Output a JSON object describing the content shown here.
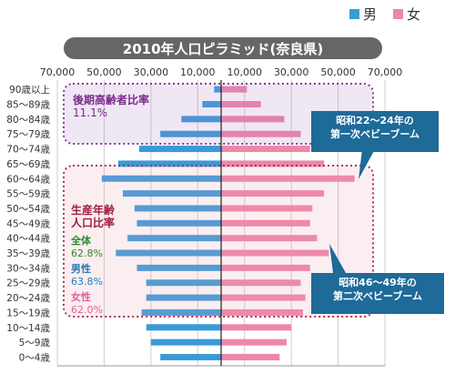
{
  "legend": {
    "male": {
      "label": "男",
      "color": "#3a9ad9"
    },
    "female": {
      "label": "女",
      "color": "#ef86a8"
    }
  },
  "callouts": [
    {
      "lines": [
        "昭和22～24年の",
        "第一次ベビーブーム"
      ]
    },
    {
      "lines": [
        "昭和46～49年の",
        "第二次ベビーブーム"
      ]
    }
  ],
  "annotations": {
    "elderly": {
      "title": "後期高齢者比率",
      "value": "11.1%"
    },
    "working": {
      "title": [
        "生産年齢",
        "人口比率"
      ],
      "total_label": "全体",
      "total_value": "62.8%",
      "male_label": "男性",
      "male_value": "63.8%",
      "female_label": "女性",
      "female_value": "62.0%"
    }
  },
  "chart_data": {
    "type": "bar",
    "title": "2010年人口ピラミッド(奈良県)",
    "orientation": "horizontal-pyramid",
    "xlim": [
      -70000,
      70000
    ],
    "x_tick_labels": [
      "70,000",
      "50,000",
      "30,000",
      "10,000",
      "10,000",
      "30,000",
      "50,000",
      "70,000"
    ],
    "x_tick_values": [
      -70000,
      -50000,
      -30000,
      -10000,
      10000,
      30000,
      50000,
      70000
    ],
    "grid": true,
    "categories": [
      "90歳以上",
      "85～89歳",
      "80～84歳",
      "75～79歳",
      "70～74歳",
      "65～69歳",
      "60～64歳",
      "55～59歳",
      "50～54歳",
      "45～49歳",
      "40～44歳",
      "35～39歳",
      "30～34歳",
      "25～29歳",
      "20～24歳",
      "15～19歳",
      "10～14歳",
      "5～9歳",
      "0～4歳"
    ],
    "series": [
      {
        "name": "男",
        "color": "#3a9ad9",
        "values": [
          3000,
          8000,
          17000,
          26000,
          35000,
          44000,
          51000,
          42000,
          37000,
          36000,
          40000,
          45000,
          36000,
          32000,
          32000,
          34000,
          32000,
          30000,
          26000
        ]
      },
      {
        "name": "女",
        "color": "#ef86a8",
        "values": [
          11000,
          17000,
          27000,
          34000,
          38000,
          44000,
          57000,
          44000,
          39000,
          38000,
          41000,
          46000,
          38000,
          34000,
          36000,
          35000,
          30000,
          28000,
          25000
        ]
      }
    ]
  }
}
